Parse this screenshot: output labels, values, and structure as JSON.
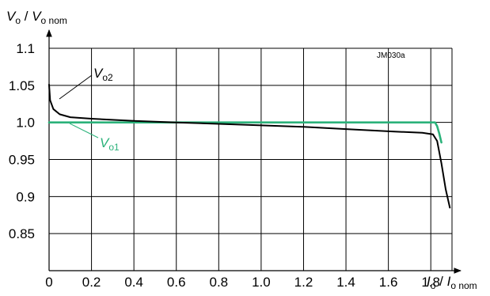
{
  "chart_data": {
    "type": "line",
    "reference": "JM030a",
    "xlabel": {
      "main": "I",
      "sub1": "o",
      "sep": " / ",
      "main2": "I",
      "sub2": "o nom"
    },
    "ylabel": {
      "main": "V",
      "sub1": "o",
      "sep": " / ",
      "main2": "V",
      "sub2": "o nom"
    },
    "xlim": [
      0,
      1.9
    ],
    "ylim": [
      0.8,
      1.1
    ],
    "x_ticks": [
      0,
      0.2,
      0.4,
      0.6,
      0.8,
      1.0,
      1.2,
      1.4,
      1.6,
      1.8
    ],
    "x_tick_labels": [
      "0",
      "0.2",
      "0.4",
      "0.6",
      "0.8",
      "1.0",
      "1.2",
      "1.4",
      "1.6",
      "1.8"
    ],
    "y_ticks": [
      0.85,
      0.9,
      0.95,
      1.0,
      1.05,
      1.1
    ],
    "y_tick_labels": [
      "0.85",
      "0.9",
      "0.95",
      "1.0",
      "1.05",
      "1.1"
    ],
    "grid": true,
    "series": [
      {
        "label_main": "V",
        "label_sub": "o2",
        "color": "#000000",
        "points": [
          [
            0,
            1.051
          ],
          [
            0.005,
            1.03
          ],
          [
            0.02,
            1.018
          ],
          [
            0.05,
            1.011
          ],
          [
            0.1,
            1.007
          ],
          [
            0.2,
            1.005
          ],
          [
            0.4,
            1.002
          ],
          [
            0.6,
            1.0
          ],
          [
            0.8,
            0.998
          ],
          [
            1.0,
            0.996
          ],
          [
            1.2,
            0.994
          ],
          [
            1.4,
            0.991
          ],
          [
            1.6,
            0.988
          ],
          [
            1.76,
            0.986
          ],
          [
            1.81,
            0.984
          ],
          [
            1.83,
            0.975
          ],
          [
            1.85,
            0.945
          ],
          [
            1.87,
            0.91
          ],
          [
            1.89,
            0.885
          ]
        ]
      },
      {
        "label_main": "V",
        "label_sub": "o1",
        "color": "#2bb27a",
        "points": [
          [
            0,
            1.0
          ],
          [
            0.5,
            1.0
          ],
          [
            1.0,
            1.0
          ],
          [
            1.5,
            1.0
          ],
          [
            1.82,
            1.0
          ],
          [
            1.83,
            0.995
          ],
          [
            1.84,
            0.985
          ],
          [
            1.85,
            0.973
          ]
        ]
      }
    ]
  }
}
